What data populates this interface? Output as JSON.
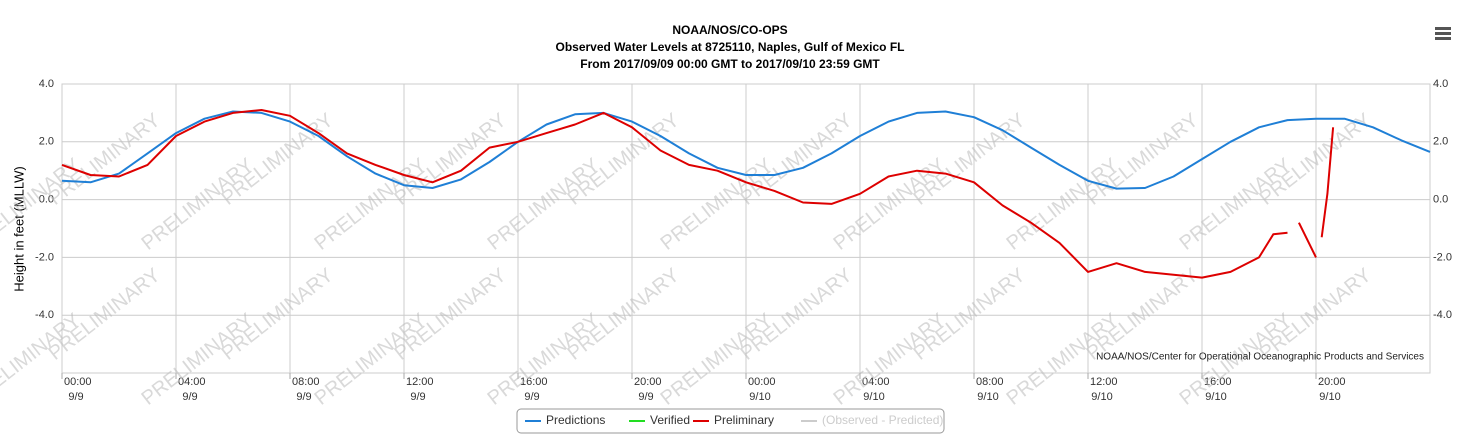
{
  "chart_data": {
    "type": "line",
    "title": "NOAA/NOS/CO-OPS",
    "subtitle": "Observed Water Levels at 8725110, Naples, Gulf of Mexico FL",
    "date_range": "From 2017/09/09 00:00 GMT to 2017/09/10 23:59 GMT",
    "y_label": "Height in feet (MLLW)",
    "credit": "NOAA/NOS/Center for Operational Oceanographic Products and Services",
    "watermark": "PRELIMINARY",
    "xlim": [
      0,
      48
    ],
    "ylim": [
      -6,
      4
    ],
    "yticks": [
      {
        "value": -4,
        "label": "-4.0"
      },
      {
        "value": -2,
        "label": "-2.0"
      },
      {
        "value": 0,
        "label": "0.0"
      },
      {
        "value": 2,
        "label": "2.0"
      },
      {
        "value": 4,
        "label": "4.0"
      }
    ],
    "xticks": [
      {
        "value": 0,
        "label": "00:00",
        "date": "9/9"
      },
      {
        "value": 4,
        "label": "04:00",
        "date": "9/9"
      },
      {
        "value": 8,
        "label": "08:00",
        "date": "9/9"
      },
      {
        "value": 12,
        "label": "12:00",
        "date": "9/9"
      },
      {
        "value": 16,
        "label": "16:00",
        "date": "9/9"
      },
      {
        "value": 20,
        "label": "20:00",
        "date": "9/9"
      },
      {
        "value": 24,
        "label": "00:00",
        "date": "9/10"
      },
      {
        "value": 28,
        "label": "04:00",
        "date": "9/10"
      },
      {
        "value": 32,
        "label": "08:00",
        "date": "9/10"
      },
      {
        "value": 36,
        "label": "12:00",
        "date": "9/10"
      },
      {
        "value": 40,
        "label": "16:00",
        "date": "9/10"
      },
      {
        "value": 44,
        "label": "20:00",
        "date": "9/10"
      }
    ],
    "grid": true,
    "series": [
      {
        "name": "Predictions",
        "color": "#1f7fd6",
        "x": [
          0,
          1,
          2,
          3,
          4,
          5,
          6,
          7,
          8,
          9,
          10,
          11,
          12,
          13,
          14,
          15,
          16,
          17,
          18,
          19,
          20,
          21,
          22,
          23,
          24,
          25,
          26,
          27,
          28,
          29,
          30,
          31,
          32,
          33,
          34,
          35,
          36,
          37,
          38,
          39,
          40,
          41,
          42,
          43,
          44,
          45,
          46,
          47,
          48
        ],
        "values": [
          0.65,
          0.6,
          0.9,
          1.6,
          2.3,
          2.8,
          3.05,
          3.0,
          2.7,
          2.2,
          1.5,
          0.9,
          0.5,
          0.4,
          0.7,
          1.3,
          2.0,
          2.6,
          2.95,
          3.0,
          2.7,
          2.2,
          1.6,
          1.1,
          0.85,
          0.85,
          1.1,
          1.6,
          2.2,
          2.7,
          3.0,
          3.05,
          2.85,
          2.4,
          1.8,
          1.2,
          0.65,
          0.38,
          0.4,
          0.8,
          1.4,
          2.0,
          2.5,
          2.75,
          2.8,
          2.8,
          2.5,
          2.05,
          1.65
        ]
      },
      {
        "name": "Verified",
        "color": "#22dd22",
        "x": [],
        "values": []
      },
      {
        "name": "Preliminary",
        "color": "#dd0000",
        "x": [
          0,
          1,
          2,
          3,
          4,
          5,
          6,
          7,
          8,
          9,
          10,
          11,
          12,
          13,
          14,
          15,
          16,
          17,
          18,
          19,
          20,
          21,
          22,
          23,
          24,
          25,
          26,
          27,
          28,
          29,
          30,
          31,
          32,
          33,
          34,
          35,
          36,
          37,
          38,
          39,
          40,
          41,
          42,
          42.5,
          43,
          43.2,
          43.4,
          44,
          44.1,
          44.2,
          44.4,
          44.6
        ],
        "values": [
          1.2,
          0.85,
          0.8,
          1.2,
          2.2,
          2.7,
          3.0,
          3.1,
          2.9,
          2.3,
          1.6,
          1.2,
          0.85,
          0.6,
          1.0,
          1.8,
          2.0,
          2.3,
          2.6,
          3.0,
          2.5,
          1.7,
          1.2,
          1.0,
          0.6,
          0.3,
          -0.1,
          -0.15,
          0.2,
          0.8,
          1.0,
          0.9,
          0.6,
          -0.2,
          -0.8,
          -1.5,
          -2.5,
          -2.2,
          -2.5,
          -2.6,
          -2.7,
          -2.5,
          -2.0,
          -1.2,
          -1.15,
          null,
          -0.8,
          -2.0,
          null,
          -1.3,
          0.2,
          2.5
        ]
      },
      {
        "name": "(Observed - Predicted)",
        "color": "#cccccc",
        "x": [],
        "values": []
      }
    ]
  }
}
